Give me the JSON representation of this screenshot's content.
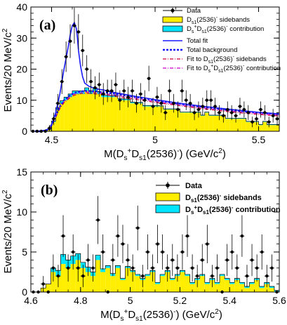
{
  "chart_data": [
    {
      "type": "line",
      "panel_label": "(a)",
      "xlabel": "M(D_s^+D_s1(2536)^-) (GeV/c^2)",
      "ylabel": "Events/20 MeV/c^2",
      "xlim": [
        4.4,
        5.6
      ],
      "ylim": [
        0,
        40
      ],
      "xticks": [
        "4.5",
        "5",
        "5.5"
      ],
      "xtick_values": [
        4.5,
        5.0,
        5.5
      ],
      "yticks": [
        "0",
        "10",
        "20",
        "30",
        "40"
      ],
      "ytick_values": [
        0,
        10,
        20,
        30,
        40
      ],
      "legend_position": "top-right",
      "legend": [
        "Data",
        "D_s1(2536)^- sidebands",
        "D_s^+D_s1(2536)^- contribution",
        "Total fit",
        "Total background",
        "Fit to D_s1(2536)^- sidebands",
        "Fit to D_s^+D_s1(2536)^- contribution"
      ],
      "bins": [
        4.41,
        4.43,
        4.45,
        4.47,
        4.49,
        4.51,
        4.53,
        4.55,
        4.57,
        4.59,
        4.61,
        4.63,
        4.65,
        4.67,
        4.69,
        4.71,
        4.73,
        4.75,
        4.77,
        4.79,
        4.81,
        4.83,
        4.85,
        4.87,
        4.89,
        4.91,
        4.93,
        4.95,
        4.97,
        4.99,
        5.01,
        5.03,
        5.05,
        5.07,
        5.09,
        5.11,
        5.13,
        5.15,
        5.17,
        5.19,
        5.21,
        5.23,
        5.25,
        5.27,
        5.29,
        5.31,
        5.33,
        5.35,
        5.37,
        5.39,
        5.41,
        5.43,
        5.45,
        5.47,
        5.49,
        5.51,
        5.53,
        5.55,
        5.57,
        5.59
      ],
      "data_y": [
        0,
        0,
        0,
        0,
        1,
        4,
        9,
        16,
        24,
        29,
        34,
        32,
        26,
        20,
        16,
        14,
        15,
        12,
        13,
        13,
        15,
        10,
        13,
        11,
        13,
        9,
        12,
        10,
        17,
        8,
        11,
        9,
        6,
        13,
        9,
        7,
        13,
        10,
        9,
        6,
        7,
        8,
        10,
        10,
        8,
        6,
        5,
        7,
        6,
        5,
        8,
        7,
        6,
        3,
        4,
        7,
        6,
        3,
        5,
        4
      ],
      "data_err": [
        0,
        0,
        0,
        0,
        1,
        2,
        3,
        4,
        4.9,
        5.4,
        5.8,
        5.7,
        5.1,
        4.5,
        4,
        3.7,
        3.9,
        3.5,
        3.6,
        3.6,
        3.9,
        3.2,
        3.6,
        3.3,
        3.6,
        3,
        3.5,
        3.2,
        4.1,
        2.8,
        3.3,
        3,
        2.4,
        3.6,
        3,
        2.6,
        3.6,
        3.2,
        3,
        2.4,
        2.6,
        2.8,
        3.2,
        3.2,
        2.8,
        2.4,
        2.2,
        2.6,
        2.4,
        2.2,
        2.8,
        2.6,
        2.4,
        1.7,
        2,
        2.6,
        2.4,
        1.7,
        2.2,
        2
      ],
      "sideband_y": [
        0,
        0,
        0,
        0,
        0.5,
        3,
        7,
        9,
        10,
        11,
        12,
        12,
        12,
        13,
        12,
        13,
        12,
        11,
        11,
        11,
        11,
        10,
        10,
        10,
        9,
        9,
        9,
        8,
        8,
        8,
        8,
        8,
        7,
        7,
        7,
        7,
        6,
        6,
        6,
        6,
        6,
        5,
        6,
        5,
        5,
        5,
        5,
        4,
        4,
        4,
        4,
        4,
        3,
        3,
        3,
        2,
        3,
        2,
        2,
        2
      ],
      "contribution_y": [
        0,
        0,
        0,
        0,
        0,
        0.3,
        0.6,
        0.8,
        1,
        1,
        1,
        1,
        1,
        1,
        1,
        1,
        0.8,
        0.6,
        0.6,
        0.5,
        0.5,
        0.5,
        0.4,
        0.4,
        0.4,
        0.3,
        0.3,
        0.3,
        0.3,
        0.3,
        0.3,
        0.2,
        0.2,
        0.2,
        0.2,
        0.2,
        0.2,
        0.2,
        0.2,
        0.2,
        0.2,
        0.2,
        0.2,
        0.2,
        0.2,
        0.2,
        0.2,
        0.2,
        0.2,
        0.2,
        0.2,
        0.2,
        0.2,
        0.2,
        0.2,
        0.2,
        0.2,
        0.2,
        0.2,
        0.2
      ],
      "fit_x": [
        4.42,
        4.45,
        4.48,
        4.5,
        4.52,
        4.54,
        4.56,
        4.58,
        4.59,
        4.6,
        4.61,
        4.62,
        4.625,
        4.63,
        4.64,
        4.65,
        4.66,
        4.68,
        4.7,
        4.72,
        4.75,
        4.8,
        4.85,
        4.9,
        5.0,
        5.1,
        5.2,
        5.3,
        5.4,
        5.5,
        5.6
      ],
      "total_fit": [
        0,
        0,
        0.5,
        2,
        6,
        12,
        20,
        27,
        31,
        34,
        35,
        33,
        30,
        26,
        21,
        17.5,
        15.5,
        14.5,
        14,
        13.6,
        13.3,
        12.5,
        11.9,
        11.3,
        10.2,
        9.2,
        8.3,
        7.5,
        6.8,
        6.1,
        5.6
      ],
      "total_background": [
        0,
        0,
        0.5,
        2,
        5,
        8,
        10,
        11,
        11.6,
        12,
        12.3,
        12.5,
        12.6,
        12.7,
        12.8,
        12.9,
        13,
        13,
        12.9,
        12.8,
        12.6,
        12.1,
        11.6,
        11.1,
        10,
        9,
        8.1,
        7.3,
        6.6,
        6,
        5.5
      ],
      "fit_sidebands": [
        0,
        0,
        0.4,
        1.7,
        4.5,
        7.3,
        9.2,
        10.3,
        10.9,
        11.3,
        11.6,
        11.8,
        11.9,
        12,
        12.1,
        12.2,
        12.2,
        12.2,
        12.1,
        12,
        11.8,
        11.3,
        10.8,
        10.3,
        9.3,
        8.4,
        7.5,
        6.7,
        6,
        5.4,
        4.9
      ],
      "fit_contribution": [
        0,
        0,
        0.45,
        1.8,
        4.7,
        7.6,
        9.6,
        10.7,
        11.3,
        11.7,
        12,
        12.2,
        12.3,
        12.4,
        12.5,
        12.6,
        12.6,
        12.6,
        12.5,
        12.4,
        12.2,
        11.7,
        11.2,
        10.7,
        9.6,
        8.7,
        7.8,
        7,
        6.3,
        5.7,
        5.2
      ]
    },
    {
      "type": "bar",
      "panel_label": "(b)",
      "xlabel": "M(D_s^+D_s1(2536)^-) (GeV/c^2)",
      "ylabel": "Events/20 MeV/c^2",
      "xlim": [
        4.6,
        5.6
      ],
      "ylim": [
        0,
        15
      ],
      "xticks": [
        "4.6",
        "4.8",
        "5",
        "5.2",
        "5.4",
        "5.6"
      ],
      "xtick_values": [
        4.6,
        4.8,
        5.0,
        5.2,
        5.4,
        5.6
      ],
      "yticks": [
        "0",
        "5",
        "10",
        "15"
      ],
      "ytick_values": [
        0,
        5,
        10,
        15
      ],
      "legend_position": "top-right",
      "legend": [
        "Data",
        "D_s1(2536)^- sidebands",
        "D_s^+D_s1(2536)^- contribution"
      ],
      "bins": [
        4.61,
        4.63,
        4.65,
        4.67,
        4.69,
        4.71,
        4.73,
        4.75,
        4.77,
        4.79,
        4.81,
        4.83,
        4.85,
        4.87,
        4.89,
        4.91,
        4.93,
        4.95,
        4.97,
        4.99,
        5.01,
        5.03,
        5.05,
        5.07,
        5.09,
        5.11,
        5.13,
        5.15,
        5.17,
        5.19,
        5.21,
        5.23,
        5.25,
        5.27,
        5.29,
        5.31,
        5.33,
        5.35,
        5.37,
        5.39,
        5.41,
        5.43,
        5.45,
        5.47,
        5.49,
        5.51,
        5.53,
        5.55,
        5.57,
        5.59
      ],
      "data_y": [
        0,
        0,
        1,
        0,
        3,
        2,
        7,
        3,
        5,
        3,
        2,
        4,
        3,
        9,
        5,
        0,
        4,
        7,
        6,
        4,
        3,
        8,
        2,
        5,
        3,
        6,
        5,
        3,
        4,
        3,
        5,
        7,
        3,
        2,
        4,
        6,
        2,
        3,
        0,
        4,
        5,
        3,
        7,
        2,
        4,
        3,
        5,
        2,
        3,
        0
      ],
      "data_err": [
        0,
        0,
        1,
        0,
        1.7,
        1.4,
        2.6,
        1.7,
        2.2,
        1.7,
        1.4,
        2,
        1.7,
        3,
        2.2,
        0,
        2,
        2.6,
        2.4,
        2,
        1.7,
        2.8,
        1.4,
        2.2,
        1.7,
        2.4,
        2.2,
        1.7,
        2,
        1.7,
        2.2,
        2.6,
        1.7,
        1.4,
        2,
        2.4,
        1.4,
        1.7,
        0,
        2,
        2.2,
        1.7,
        2.6,
        1.4,
        2,
        1.7,
        2.2,
        1.4,
        1.7,
        0
      ],
      "sideband_y": [
        0,
        0,
        0.5,
        1,
        2.5,
        2,
        3.5,
        3,
        3.5,
        4,
        3,
        2.5,
        2,
        4,
        2.5,
        3,
        2,
        3,
        1.5,
        3,
        2.5,
        2,
        1.5,
        2,
        2.5,
        1,
        2,
        2.5,
        1.5,
        2,
        2.5,
        2,
        1,
        1.5,
        2,
        1,
        1.5,
        1,
        2,
        1.5,
        1,
        1.5,
        1,
        0.5,
        1,
        1.5,
        0.5,
        1,
        0.5,
        0
      ],
      "contribution_y": [
        0,
        0,
        0,
        0,
        0.5,
        0.7,
        1.2,
        1,
        1,
        0.8,
        0.7,
        0.6,
        0.5,
        0.6,
        0.4,
        0.3,
        0.3,
        0.3,
        0.2,
        0.2,
        0.2,
        0.2,
        0.2,
        0.2,
        0.2,
        0.2,
        0.2,
        0.2,
        0.2,
        0.2,
        0.2,
        0.2,
        0.2,
        0.2,
        0.2,
        0.2,
        0.2,
        0.2,
        0.2,
        0.2,
        0.2,
        0.2,
        0.2,
        0.2,
        0.2,
        0.2,
        0.2,
        0.2,
        0.2,
        0.2
      ]
    }
  ]
}
